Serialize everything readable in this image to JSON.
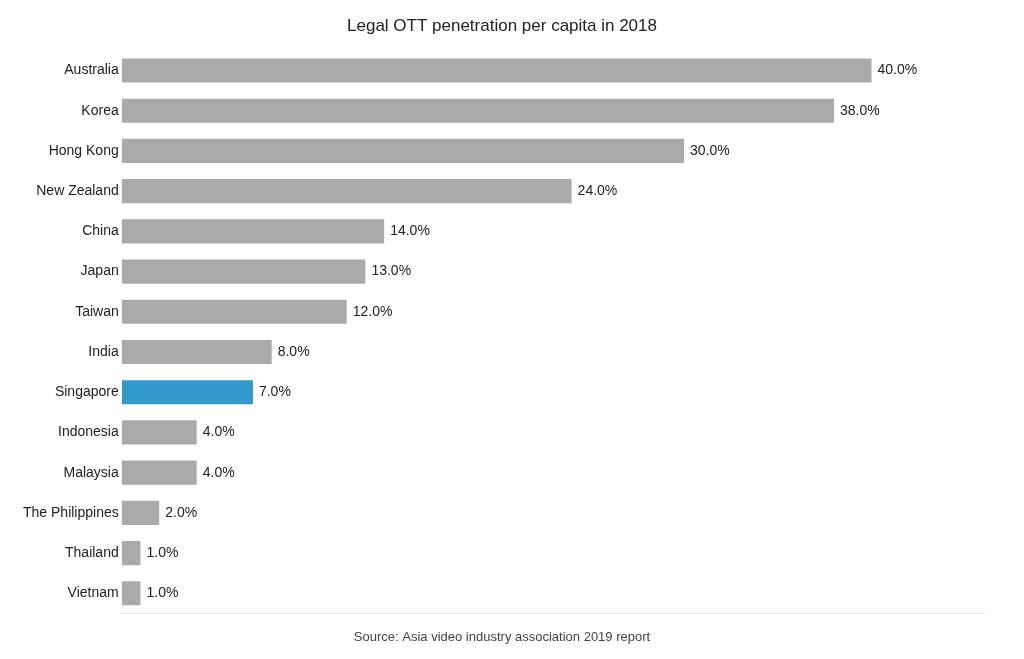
{
  "chart_data": {
    "type": "bar",
    "orientation": "horizontal",
    "title": "Legal OTT penetration per capita in 2018",
    "annotations": [
      "Source: Asia video industry association 2019 report"
    ],
    "categories": [
      "Australia",
      "Korea",
      "Hong Kong",
      "New Zealand",
      "China",
      "Japan",
      "Taiwan",
      "India",
      "Singapore",
      "Indonesia",
      "Malaysia",
      "The Philippines",
      "Thailand",
      "Vietnam"
    ],
    "values": [
      40.0,
      38.0,
      30.0,
      24.0,
      14.0,
      13.0,
      12.0,
      8.0,
      7.0,
      4.0,
      4.0,
      2.0,
      1.0,
      1.0
    ],
    "value_labels": [
      "40.0%",
      "38.0%",
      "30.0%",
      "24.0%",
      "14.0%",
      "13.0%",
      "12.0%",
      "8.0%",
      "7.0%",
      "4.0%",
      "4.0%",
      "2.0%",
      "1.0%",
      "1.0%"
    ],
    "colors": [
      "#aaaaaa",
      "#aaaaaa",
      "#aaaaaa",
      "#aaaaaa",
      "#aaaaaa",
      "#aaaaaa",
      "#aaaaaa",
      "#aaaaaa",
      "#3399cc",
      "#aaaaaa",
      "#aaaaaa",
      "#aaaaaa",
      "#aaaaaa",
      "#aaaaaa"
    ],
    "xlim": [
      0,
      46
    ],
    "grid": false,
    "data_labels": true,
    "tick_labels": "y"
  }
}
